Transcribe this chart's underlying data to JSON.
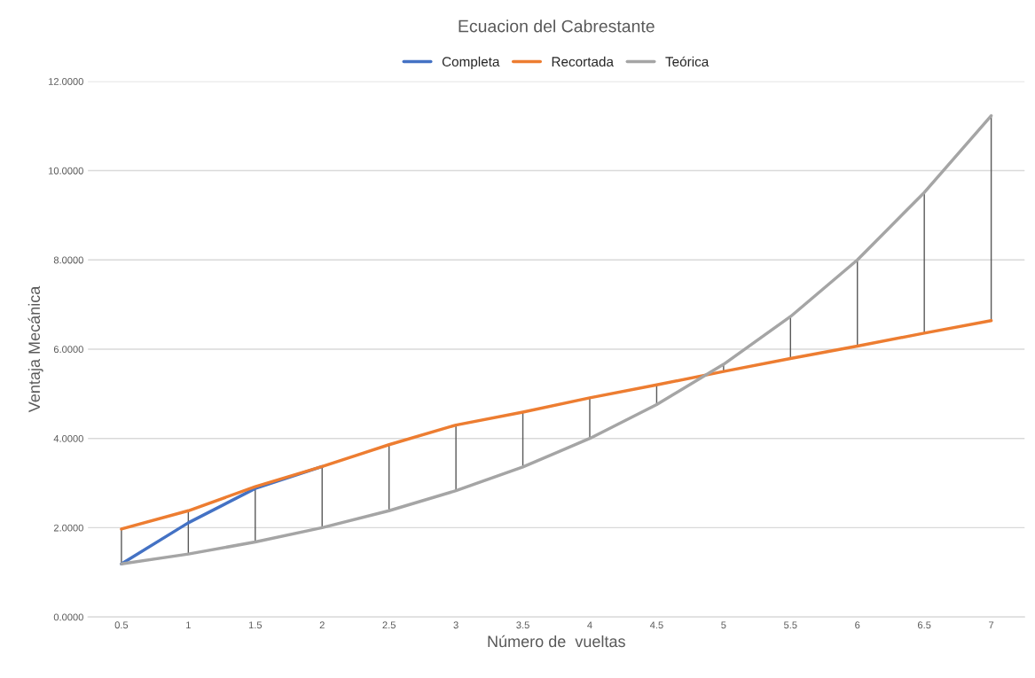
{
  "chart_data": {
    "type": "line",
    "title": "Ecuacion del Cabrestante",
    "xlabel": "Número de  vueltas",
    "ylabel": "Ventaja Mecánica",
    "categories": [
      "0.5",
      "1",
      "1.5",
      "2",
      "2.5",
      "3",
      "3.5",
      "4",
      "4.5",
      "5",
      "5.5",
      "6",
      "6.5",
      "7"
    ],
    "series": [
      {
        "name": "Completa",
        "color": "#4472c4",
        "values": [
          1.19,
          2.11,
          2.88,
          3.37,
          null,
          null,
          null,
          null,
          null,
          null,
          null,
          null,
          null,
          null
        ]
      },
      {
        "name": "Recortada",
        "color": "#ed7d31",
        "values": [
          1.97,
          2.38,
          2.92,
          3.37,
          3.86,
          4.3,
          4.59,
          4.91,
          5.2,
          5.5,
          5.79,
          6.07,
          6.36,
          6.64
        ],
        "errors": [
          [
            1.19,
            1.97
          ],
          [
            1.41,
            2.38
          ],
          [
            1.68,
            2.92
          ],
          [
            2.0,
            3.37
          ],
          [
            2.38,
            3.86
          ],
          [
            2.83,
            4.3
          ],
          [
            3.36,
            4.59
          ],
          [
            4.0,
            4.91
          ],
          [
            4.76,
            5.2
          ],
          [
            5.5,
            5.66
          ],
          [
            5.79,
            6.73
          ],
          [
            6.07,
            8.0
          ],
          [
            6.36,
            9.51
          ],
          [
            6.64,
            11.23
          ]
        ]
      },
      {
        "name": "Teórica",
        "color": "#a5a5a5",
        "values": [
          1.19,
          1.41,
          1.68,
          2.0,
          2.38,
          2.83,
          3.36,
          4.0,
          4.76,
          5.66,
          6.73,
          8.0,
          9.51,
          11.23
        ]
      }
    ],
    "ylim": [
      0,
      12
    ],
    "yticks": [
      {
        "value": 0,
        "label": "0.0000"
      },
      {
        "value": 2,
        "label": "2.0000"
      },
      {
        "value": 4,
        "label": "4.0000"
      },
      {
        "value": 6,
        "label": "6.0000"
      },
      {
        "value": 8,
        "label": "8.0000"
      },
      {
        "value": 10,
        "label": "10.0000"
      },
      {
        "value": 12,
        "label": "12.0000"
      }
    ],
    "grid": "y",
    "legend": "top"
  }
}
